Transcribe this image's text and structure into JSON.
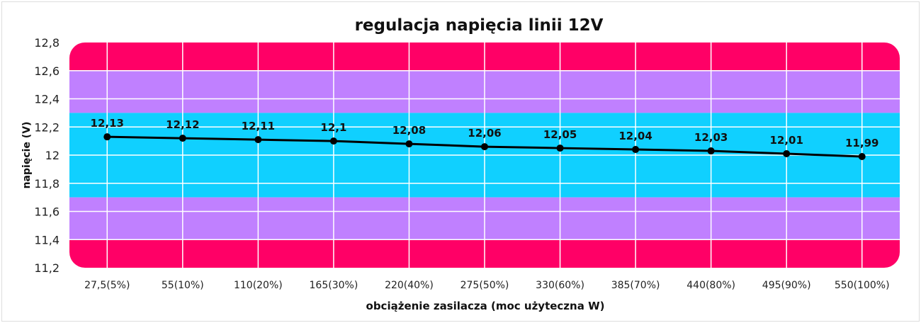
{
  "chart_data": {
    "type": "line",
    "title": "regulacja napięcia linii 12V",
    "xlabel": "obciążenie zasilacza (moc użyteczna W)",
    "ylabel": "napięcie (V)",
    "categories": [
      "27,5(5%)",
      "55(10%)",
      "110(20%)",
      "165(30%)",
      "220(40%)",
      "275(50%)",
      "330(60%)",
      "385(70%)",
      "440(80%)",
      "495(90%)",
      "550(100%)"
    ],
    "values": [
      12.13,
      12.12,
      12.11,
      12.1,
      12.08,
      12.06,
      12.05,
      12.04,
      12.03,
      12.01,
      11.99
    ],
    "data_labels": [
      "12,13",
      "12,12",
      "12,11",
      "12,1",
      "12,08",
      "12,06",
      "12,05",
      "12,04",
      "12,03",
      "12,01",
      "11,99"
    ],
    "ylim": [
      11.2,
      12.8
    ],
    "yticks": [
      12.8,
      12.6,
      12.4,
      12.2,
      12,
      11.8,
      11.6,
      11.4,
      11.2
    ],
    "ytick_labels": [
      "12,8",
      "12,6",
      "12,4",
      "12,2",
      "12",
      "11,8",
      "11,6",
      "11,4",
      "11,2"
    ],
    "bands": [
      {
        "from": 12.6,
        "to": 12.8,
        "color": "#FF0066"
      },
      {
        "from": 12.3,
        "to": 12.6,
        "color": "#C080FF"
      },
      {
        "from": 11.7,
        "to": 12.3,
        "color": "#10D0FF"
      },
      {
        "from": 11.4,
        "to": 11.7,
        "color": "#C080FF"
      },
      {
        "from": 11.2,
        "to": 11.4,
        "color": "#FF0066"
      }
    ],
    "grid": true,
    "line_color": "#000000"
  }
}
